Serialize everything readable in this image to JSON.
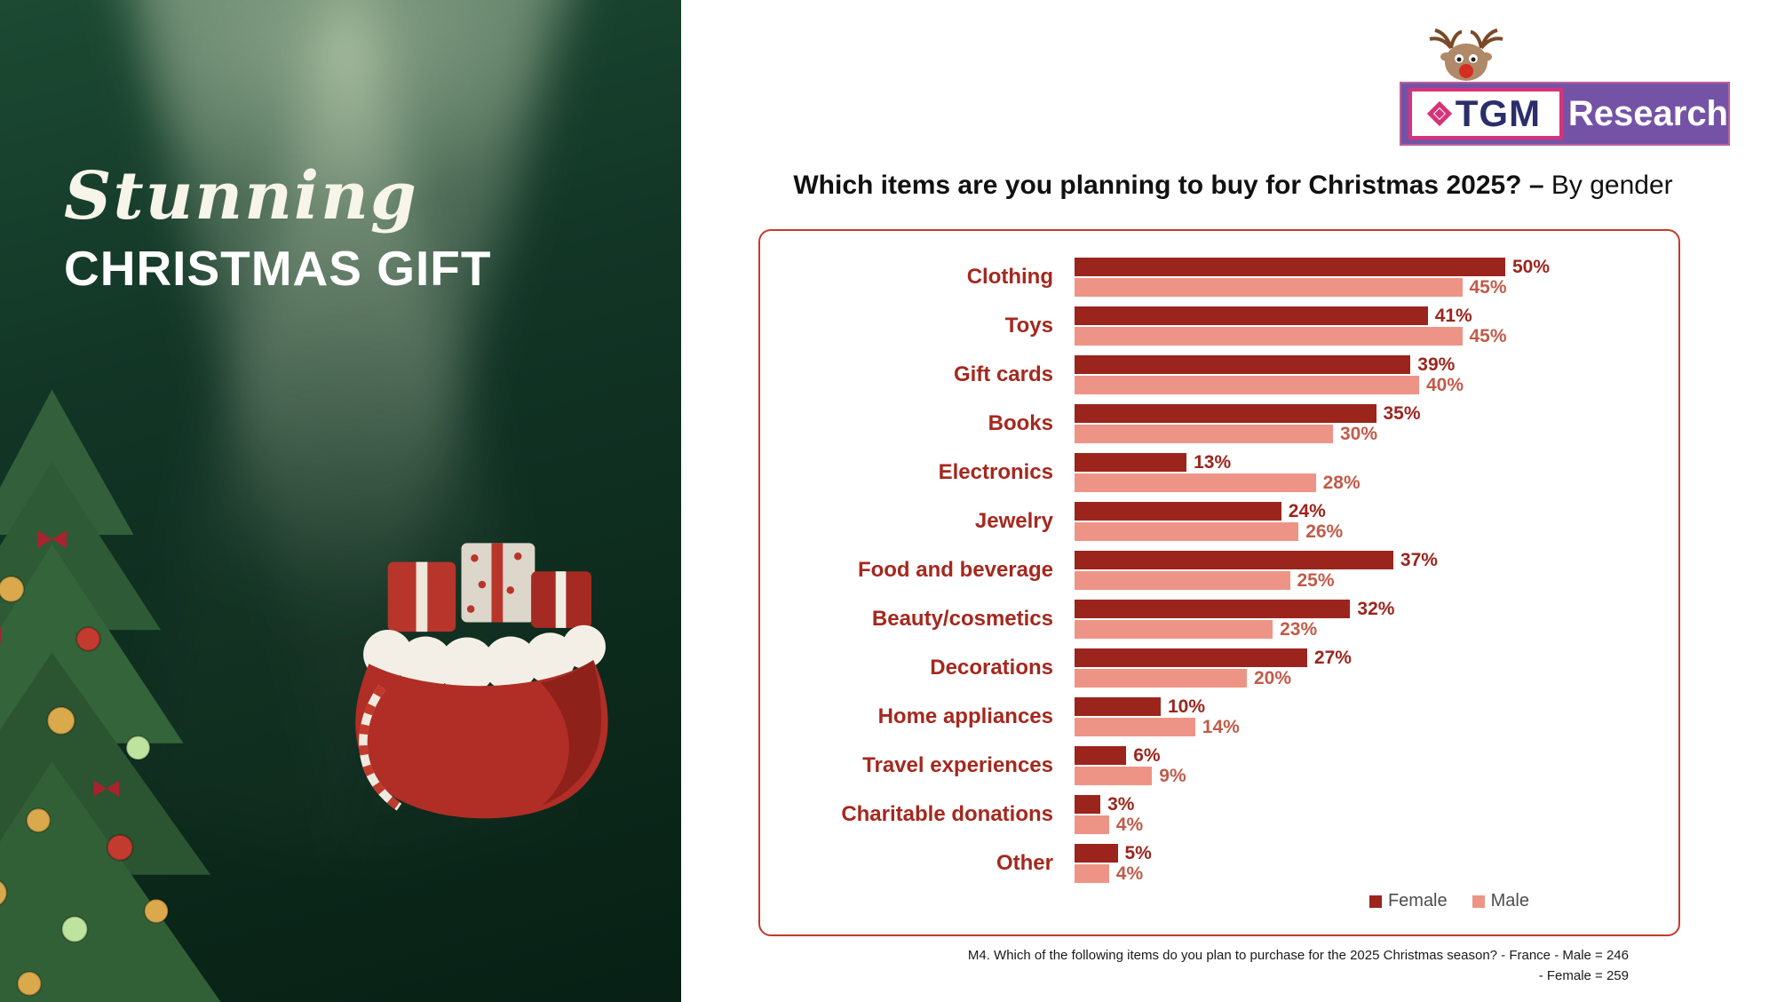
{
  "left_panel": {
    "script_word": "Stunning",
    "title": "CHRISTMAS GIFT"
  },
  "logo": {
    "tgm": "TGM",
    "research": "Research"
  },
  "header": {
    "title_bold": "Which items are you planning to buy for Christmas 2025? –",
    "title_regular": " By gender"
  },
  "chart_data": {
    "type": "bar",
    "orientation": "horizontal",
    "title": "Which items are you planning to buy for Christmas 2025? – By gender",
    "categories": [
      "Clothing",
      "Toys",
      "Gift cards",
      "Books",
      "Electronics",
      "Jewelry",
      "Food and beverage",
      "Beauty/cosmetics",
      "Decorations",
      "Home appliances",
      "Travel experiences",
      "Charitable donations",
      "Other"
    ],
    "series": [
      {
        "name": "Female",
        "color": "#9b251d",
        "value_color": "#9b251d",
        "values": [
          50,
          41,
          39,
          35,
          13,
          24,
          37,
          32,
          27,
          10,
          6,
          3,
          5
        ]
      },
      {
        "name": "Male",
        "color": "#ee9486",
        "value_color": "#c25b49",
        "values": [
          45,
          45,
          40,
          30,
          28,
          26,
          25,
          23,
          20,
          14,
          9,
          4,
          4
        ]
      }
    ],
    "value_suffix": "%",
    "xlim": [
      0,
      55
    ],
    "grid": false,
    "legend_position": "bottom-right"
  },
  "legend": {
    "female": "Female",
    "male": "Male"
  },
  "footnote": {
    "line1": "M4. Which of the following items do you plan to purchase for the 2025 Christmas season? - France  - Male = 246",
    "line2": "- Female = 259"
  }
}
